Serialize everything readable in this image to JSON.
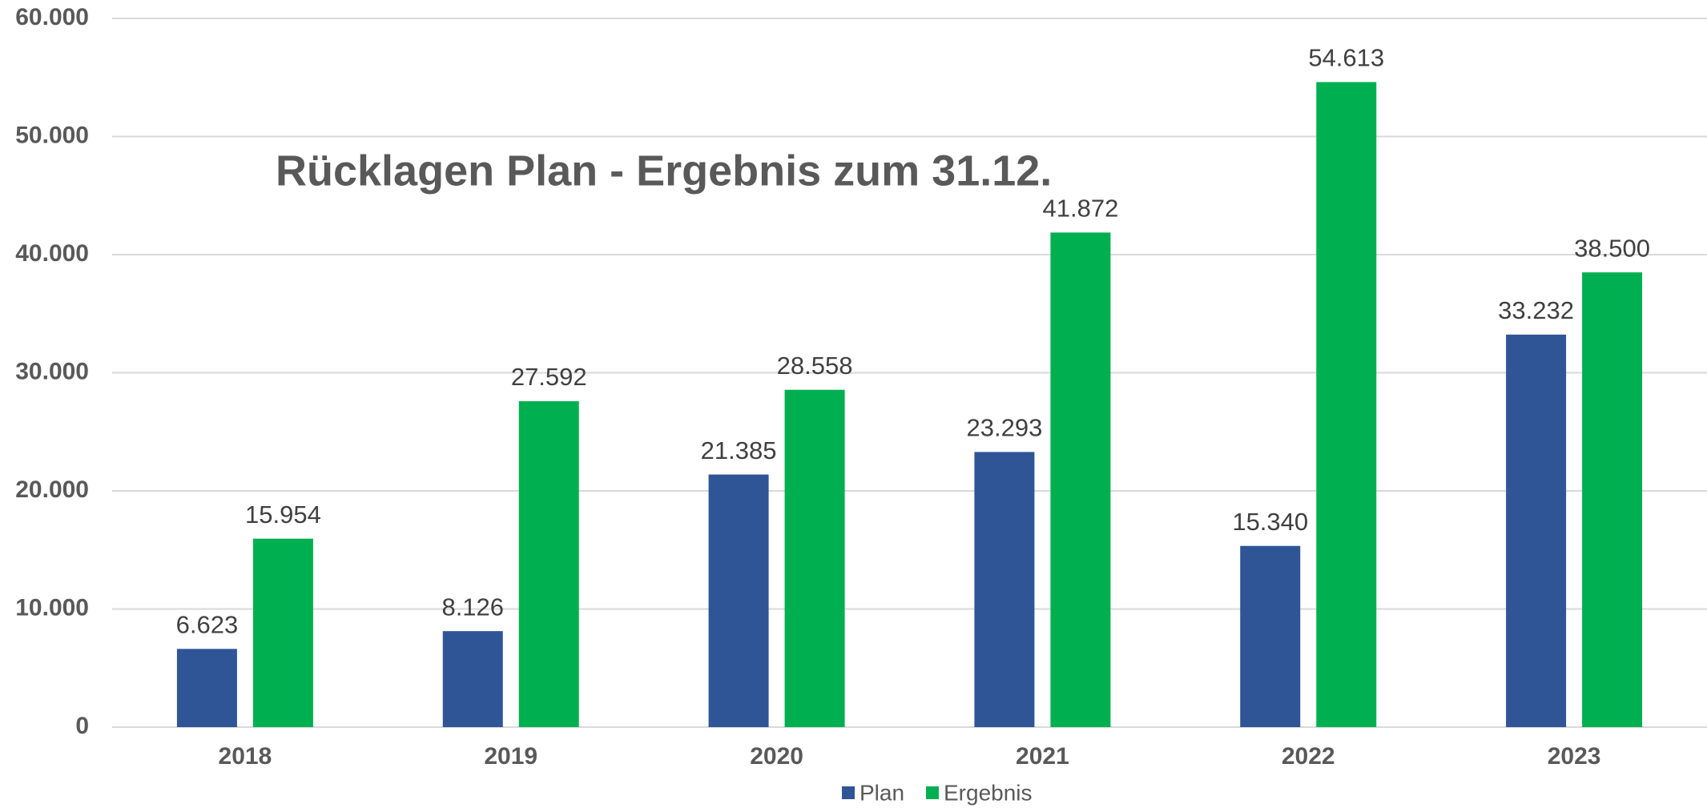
{
  "chart_data": {
    "type": "bar",
    "title": "Rücklagen Plan - Ergebnis zum 31.12.",
    "categories": [
      "2018",
      "2019",
      "2020",
      "2021",
      "2022",
      "2023"
    ],
    "series": [
      {
        "name": "Plan",
        "color": "#2f5597",
        "values": [
          6623,
          8126,
          21385,
          23293,
          15340,
          33232
        ],
        "value_labels": [
          "6.623",
          "8.126",
          "21.385",
          "23.293",
          "15.340",
          "33.232"
        ]
      },
      {
        "name": "Ergebnis",
        "color": "#00b050",
        "values": [
          15954,
          27592,
          28558,
          41872,
          54613,
          38500
        ],
        "value_labels": [
          "15.954",
          "27.592",
          "28.558",
          "41.872",
          "54.613",
          "38.500"
        ]
      }
    ],
    "ylim": [
      0,
      60000
    ],
    "yticks": [
      0,
      {
        "value": 10000,
        "label": "10.000"
      },
      {
        "value": 20000,
        "label": "20.000"
      },
      {
        "value": 30000,
        "label": "30.000"
      },
      {
        "value": 40000,
        "label": "40.000"
      },
      {
        "value": 50000,
        "label": "50.000"
      },
      {
        "value": 60000,
        "label": "60.000"
      }
    ],
    "grid": true,
    "legend": "bottom"
  }
}
